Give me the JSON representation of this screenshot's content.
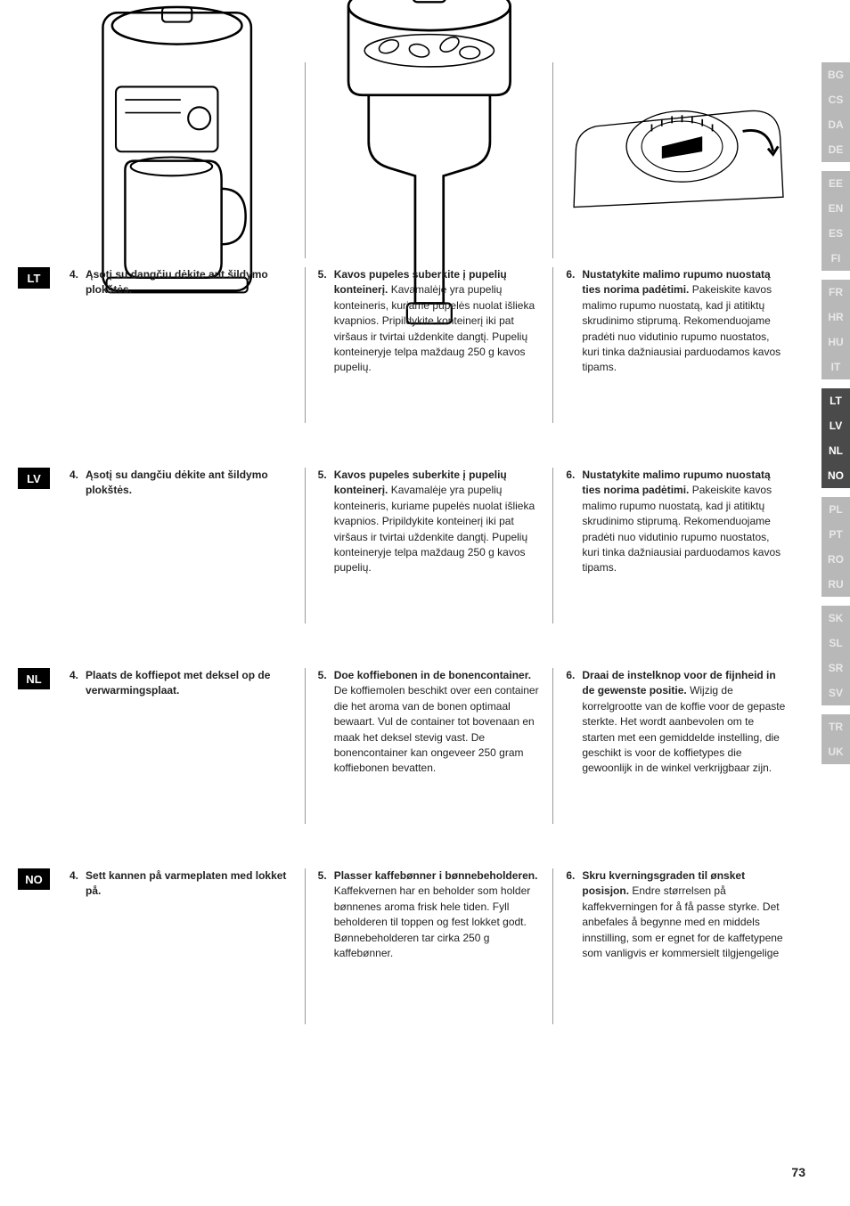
{
  "page_number": "73",
  "side_tabs": {
    "group1": [
      {
        "code": "BG",
        "active": false
      },
      {
        "code": "CS",
        "active": false
      },
      {
        "code": "DA",
        "active": false
      },
      {
        "code": "DE",
        "active": false
      }
    ],
    "group2": [
      {
        "code": "EE",
        "active": false
      },
      {
        "code": "EN",
        "active": false
      },
      {
        "code": "ES",
        "active": false
      },
      {
        "code": "FI",
        "active": false
      }
    ],
    "group3": [
      {
        "code": "FR",
        "active": false
      },
      {
        "code": "HR",
        "active": false
      },
      {
        "code": "HU",
        "active": false
      },
      {
        "code": "IT",
        "active": false
      }
    ],
    "group4": [
      {
        "code": "LT",
        "active": true
      },
      {
        "code": "LV",
        "active": true
      },
      {
        "code": "NL",
        "active": true
      },
      {
        "code": "NO",
        "active": true
      }
    ],
    "group5": [
      {
        "code": "PL",
        "active": false
      },
      {
        "code": "PT",
        "active": false
      },
      {
        "code": "RO",
        "active": false
      },
      {
        "code": "RU",
        "active": false
      }
    ],
    "group6": [
      {
        "code": "SK",
        "active": false
      },
      {
        "code": "SL",
        "active": false
      },
      {
        "code": "SR",
        "active": false
      },
      {
        "code": "SV",
        "active": false
      }
    ],
    "group7": [
      {
        "code": "TR",
        "active": false
      },
      {
        "code": "UK",
        "active": false
      }
    ]
  },
  "colors": {
    "tab_active_bg": "#4a4a4a",
    "tab_inactive_bg": "#b8b8b8",
    "tab_inactive_text": "#e8e8e8",
    "label_bg": "#000000"
  },
  "rows": {
    "lt": {
      "label": "LT",
      "c1_num": "4.",
      "c1_bold": "Ąsotį su dangčiu dėkite ant šildymo plokštės.",
      "c1_rest": "",
      "c2_num": "5.",
      "c2_bold": "Kavos pupeles suberkite į pupelių konteinerį.",
      "c2_rest": " Kavamalėje yra pupelių konteineris, kuriame pupelės nuolat išlieka kvapnios. Pripildykite konteinerį iki pat viršaus ir tvirtai uždenkite dangtį. Pupelių konteineryje telpa maždaug 250 g kavos pupelių.",
      "c3_num": "6.",
      "c3_bold": "Nustatykite malimo rupumo nuostatą ties norima padėtimi.",
      "c3_rest": " Pakeiskite kavos malimo rupumo nuostatą, kad ji atitiktų skrudinimo stiprumą. Rekomenduojame pradėti nuo vidutinio rupumo nuostatos, kuri tinka dažniausiai parduodamos kavos tipams."
    },
    "lv": {
      "label": "LV",
      "c1_num": "4.",
      "c1_bold": "Ąsotį su dangčiu dėkite ant šildymo plokštės.",
      "c1_rest": "",
      "c2_num": "5.",
      "c2_bold": "Kavos pupeles suberkite į pupelių konteinerį.",
      "c2_rest": " Kavamalėje yra pupelių konteineris, kuriame pupelės nuolat išlieka kvapnios. Pripildykite konteinerį iki pat viršaus ir tvirtai uždenkite dangtį. Pupelių konteineryje telpa maždaug 250 g kavos pupelių.",
      "c3_num": "6.",
      "c3_bold": "Nustatykite malimo rupumo nuostatą ties norima padėtimi.",
      "c3_rest": " Pakeiskite kavos malimo rupumo nuostatą, kad ji atitiktų skrudinimo stiprumą. Rekomenduojame pradėti nuo vidutinio rupumo nuostatos, kuri tinka dažniausiai parduodamos kavos tipams."
    },
    "nl": {
      "label": "NL",
      "c1_num": "4.",
      "c1_bold": "Plaats de koffiepot met deksel op de verwarmingsplaat.",
      "c1_rest": "",
      "c2_num": "5.",
      "c2_bold": "Doe koffiebonen in de bonencontainer.",
      "c2_rest": " De koffiemolen beschikt over een container die het aroma van de bonen optimaal bewaart. Vul de container tot bovenaan en maak het deksel stevig vast. De bonencontainer kan ongeveer 250 gram koffiebonen bevatten.",
      "c3_num": "6.",
      "c3_bold": "Draai de instelknop voor de fijnheid in de gewenste positie.",
      "c3_rest": " Wijzig de korrelgrootte van de koffie voor de gepaste sterkte. Het wordt aanbevolen om te starten met een gemiddelde instelling, die geschikt is voor de koffietypes die gewoonlijk in de winkel verkrijgbaar zijn."
    },
    "no": {
      "label": "NO",
      "c1_num": "4.",
      "c1_bold": "Sett kannen på varmeplaten med lokket på.",
      "c1_rest": "",
      "c2_num": "5.",
      "c2_bold": "Plasser kaffebønner i bønnebeholderen.",
      "c2_rest": " Kaffekvernen har en beholder som holder bønnenes aroma frisk hele tiden. Fyll beholderen til toppen og fest lokket godt. Bønnebeholderen tar cirka 250 g kaffebønner.",
      "c3_num": "6.",
      "c3_bold": "Skru kverningsgraden til ønsket posisjon.",
      "c3_rest": " Endre størrelsen på kaffekverningen for å få passe styrke. Det anbefales å begynne med en middels innstilling, som er egnet for de kaffetypene som vanligvis er kommersielt tilgjengelige"
    }
  }
}
